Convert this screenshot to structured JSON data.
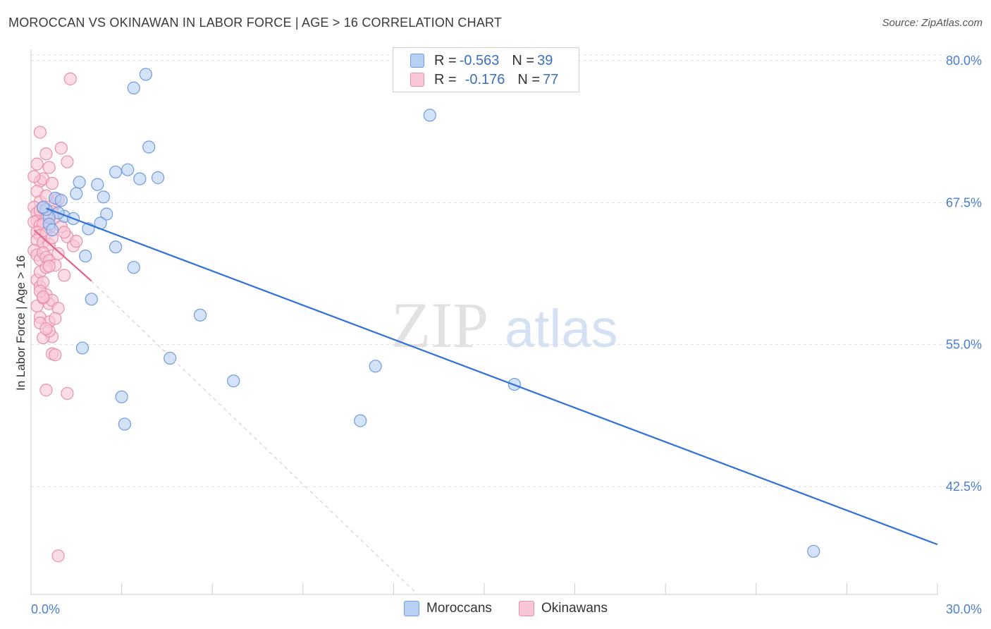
{
  "title": "MOROCCAN VS OKINAWAN IN LABOR FORCE | AGE > 16 CORRELATION CHART",
  "source": "Source: ZipAtlas.com",
  "watermark": {
    "zip": "ZIP",
    "atlas": "atlas"
  },
  "colors": {
    "blue_fill": "#b8d0f4",
    "blue_stroke": "#6f9be0",
    "blue_line": "#2f72d6",
    "pink_fill": "#f8c6d6",
    "pink_stroke": "#ea8fac",
    "pink_line": "#e0648e",
    "axis_text": "#4a7fd0",
    "grid": "#dddddd"
  },
  "legend": {
    "rows": [
      {
        "r_label": "R = ",
        "r_value": "-0.563",
        "n_label": "N = ",
        "n_value": "39"
      },
      {
        "r_label": "R = ",
        "r_value": "-0.176",
        "n_label": "N = ",
        "n_value": "77"
      }
    ]
  },
  "bottom_legend": [
    "Moroccans",
    "Okinawans"
  ],
  "chart_data": {
    "type": "scatter",
    "title": "MOROCCAN VS OKINAWAN IN LABOR FORCE | AGE > 16 CORRELATION CHART",
    "xlabel": "",
    "ylabel": "In Labor Force | Age > 16",
    "xlim": [
      0,
      30
    ],
    "ylim": [
      33,
      81
    ],
    "x_tick_labels": [
      "0.0%",
      "30.0%"
    ],
    "y_ticks": [
      42.5,
      55.0,
      67.5,
      80.0
    ],
    "y_tick_labels": [
      "42.5%",
      "55.0%",
      "67.5%",
      "80.0%"
    ],
    "grid": true,
    "legend_position": "top-center",
    "series": [
      {
        "name": "Moroccans",
        "x": [
          3.8,
          3.9,
          3.4,
          13.2,
          3.2,
          4.2,
          2.8,
          3.6,
          2.2,
          1.6,
          1.5,
          2.4,
          2.5,
          0.8,
          1.0,
          1.1,
          1.4,
          0.9,
          0.6,
          0.5,
          0.4,
          0.6,
          0.7,
          2.3,
          1.9,
          2.8,
          1.8,
          3.4,
          5.6,
          2.0,
          1.7,
          4.6,
          11.4,
          6.7,
          3.0,
          10.9,
          3.1,
          16.0,
          25.9
        ],
        "y": [
          78.8,
          72.4,
          77.6,
          75.2,
          70.4,
          69.7,
          70.2,
          69.6,
          69.1,
          69.3,
          68.3,
          68.0,
          66.5,
          67.9,
          67.7,
          66.3,
          66.1,
          66.6,
          66.2,
          66.9,
          67.1,
          65.6,
          65.1,
          65.7,
          65.2,
          63.6,
          62.8,
          61.8,
          57.6,
          59.0,
          54.7,
          53.8,
          53.1,
          51.8,
          50.4,
          48.3,
          48.0,
          51.5,
          36.8
        ]
      },
      {
        "name": "Okinawans",
        "x": [
          1.3,
          0.3,
          1.0,
          1.2,
          0.5,
          0.6,
          0.2,
          0.3,
          0.4,
          0.7,
          0.1,
          0.2,
          0.3,
          0.5,
          0.8,
          0.9,
          0.1,
          0.2,
          0.3,
          0.4,
          0.6,
          0.7,
          0.2,
          0.5,
          0.8,
          0.1,
          0.3,
          0.4,
          0.6,
          0.2,
          0.3,
          0.5,
          0.2,
          0.4,
          0.6,
          0.7,
          0.1,
          0.2,
          0.3,
          0.4,
          0.5,
          0.6,
          0.8,
          1.1,
          1.2,
          1.4,
          1.5,
          1.0,
          0.9,
          0.2,
          0.3,
          0.5,
          0.6,
          0.7,
          0.9,
          0.2,
          0.3,
          0.4,
          0.6,
          0.7,
          0.3,
          0.5,
          0.6,
          0.4,
          0.3,
          0.8,
          0.4,
          0.6,
          0.7,
          1.2,
          0.5,
          1.1,
          0.3,
          0.4,
          0.8,
          0.5,
          0.9
        ],
        "y": [
          78.4,
          73.7,
          72.3,
          71.1,
          71.8,
          70.6,
          70.9,
          69.4,
          69.6,
          69.2,
          69.8,
          68.5,
          67.6,
          68.1,
          67.4,
          67.8,
          67.1,
          66.6,
          66.8,
          67.0,
          66.4,
          66.7,
          65.9,
          66.1,
          66.2,
          65.8,
          65.5,
          65.6,
          65.3,
          64.9,
          64.6,
          64.8,
          64.2,
          64.0,
          63.8,
          64.4,
          63.3,
          62.9,
          62.5,
          63.1,
          62.7,
          62.4,
          62.0,
          61.1,
          64.5,
          63.7,
          64.1,
          65.4,
          63.0,
          60.7,
          60.1,
          59.4,
          58.6,
          58.9,
          58.2,
          58.4,
          57.4,
          59.1,
          57.0,
          55.7,
          61.4,
          61.8,
          61.9,
          60.5,
          59.7,
          57.3,
          55.6,
          56.2,
          54.2,
          50.7,
          51.0,
          64.9,
          56.9,
          59.2,
          54.1,
          56.4,
          36.4
        ]
      }
    ],
    "trendlines": [
      {
        "name": "Moroccans",
        "x": [
          0.5,
          30
        ],
        "y": [
          67.0,
          37.4
        ],
        "style": "solid"
      },
      {
        "name": "Okinawans",
        "x": [
          0.1,
          2.0
        ],
        "y": [
          65.1,
          60.6
        ],
        "style": "solid"
      },
      {
        "name": "Okinawans",
        "x": [
          2.0,
          12.8
        ],
        "y": [
          60.6,
          33.0
        ],
        "style": "dashed"
      }
    ]
  }
}
